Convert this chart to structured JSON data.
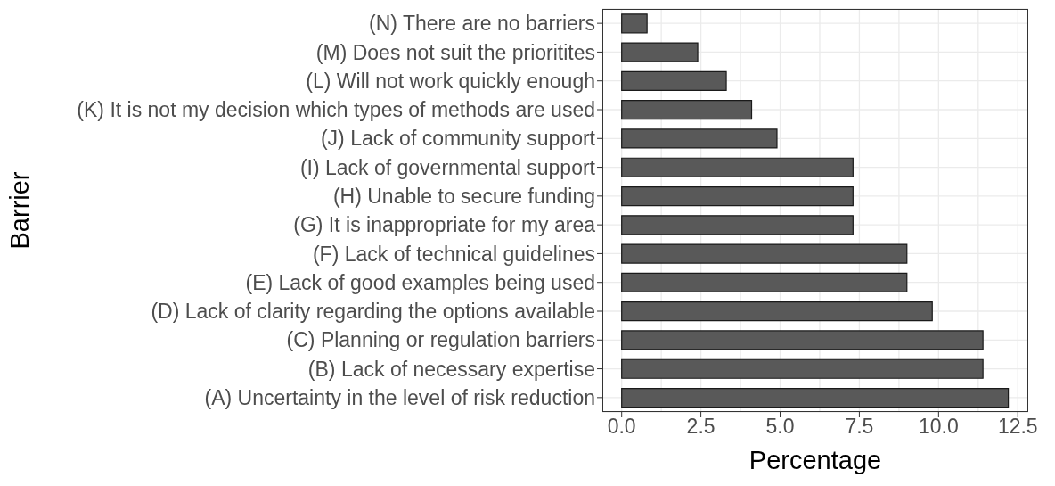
{
  "chart_data": {
    "type": "bar",
    "orientation": "horizontal",
    "xlabel": "Percentage",
    "ylabel": "Barrier",
    "categories": [
      "(N) There are no barriers",
      "(M) Does not suit the prioritites",
      "(L) Will not work quickly enough",
      "(K) It is not my decision which types of methods are used",
      "(J) Lack of community support",
      "(I) Lack of governmental support",
      "(H) Unable to secure funding",
      "(G) It is inappropriate for my area",
      "(F) Lack of technical guidelines",
      "(E) Lack of good examples being used",
      "(D) Lack of clarity regarding the options available",
      "(C) Planning or regulation barriers",
      "(B) Lack of necessary expertise",
      "(A) Uncertainty in the level of risk reduction"
    ],
    "values": [
      0.8,
      2.4,
      3.3,
      4.1,
      4.9,
      7.3,
      7.3,
      7.3,
      9.0,
      9.0,
      9.8,
      11.4,
      11.4,
      12.2
    ],
    "color": "#595959",
    "xlim": [
      -0.61,
      12.83
    ],
    "xticks": [
      {
        "value": 0,
        "label": "0.0"
      },
      2.5,
      {
        "value": 5,
        "label": "5.0"
      },
      7.5,
      {
        "value": 10,
        "label": "10.0"
      },
      12.5
    ],
    "grid": true
  }
}
